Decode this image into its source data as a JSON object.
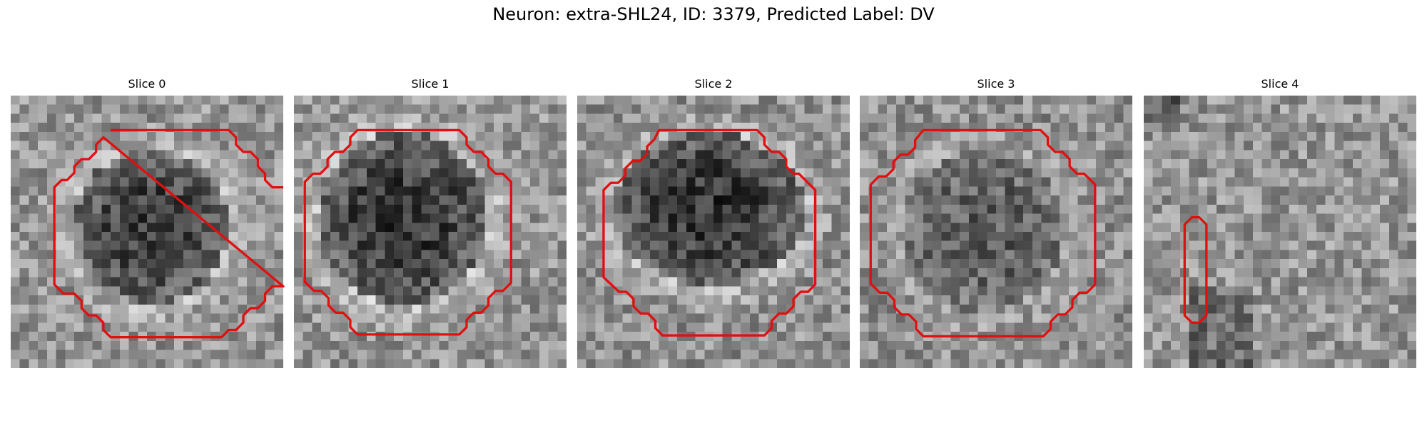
{
  "figure": {
    "title": "Neuron: extra-SHL24, ID: 3379, Predicted Label: DV"
  },
  "panels": [
    {
      "title": "Slice 0",
      "contour_color": "#e01010",
      "image_description": "grayscale noisy microscopy patch with dark central blob"
    },
    {
      "title": "Slice 1",
      "contour_color": "#e01010",
      "image_description": "grayscale noisy microscopy patch with dark central blob"
    },
    {
      "title": "Slice 2",
      "contour_color": "#e01010",
      "image_description": "grayscale noisy microscopy patch with dark central blob"
    },
    {
      "title": "Slice 3",
      "contour_color": "#e01010",
      "image_description": "grayscale noisy microscopy patch with dark central blob"
    },
    {
      "title": "Slice 4",
      "contour_color": "#e01010",
      "image_description": "grayscale noisy microscopy patch with small vertical contour"
    }
  ]
}
